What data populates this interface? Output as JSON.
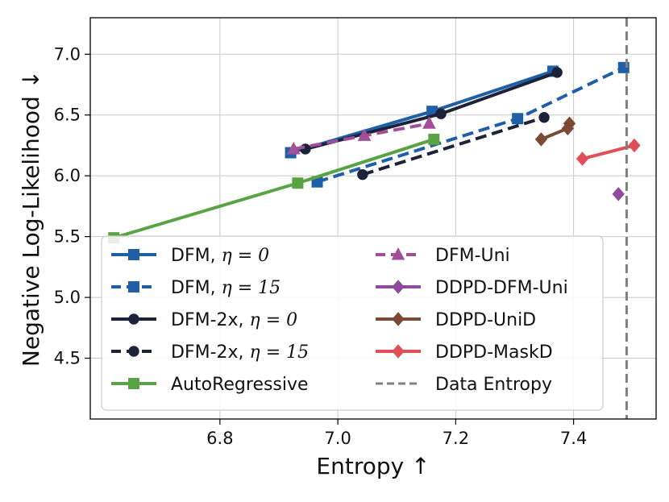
{
  "chart_data": {
    "type": "line",
    "xlabel": "Entropy ↑",
    "ylabel": "Negative Log-Likelihood ↓",
    "xlim": [
      6.58,
      7.54
    ],
    "ylim": [
      4.0,
      7.3
    ],
    "xticks": [
      6.8,
      7.0,
      7.2,
      7.4
    ],
    "xtick_labels": [
      "6.8",
      "7.0",
      "7.2",
      "7.4"
    ],
    "yticks": [
      4.5,
      5.0,
      5.5,
      6.0,
      6.5,
      7.0
    ],
    "ytick_labels": [
      "4.5",
      "5.0",
      "5.5",
      "6.0",
      "6.5",
      "7.0"
    ],
    "grid": true,
    "legend_position": "lower-left",
    "series": [
      {
        "name": "DFM, η = 0",
        "label_base": "DFM, ",
        "math": "η = 0",
        "color": "#1f5fa8",
        "linestyle": "solid",
        "marker": "square",
        "x": [
          6.92,
          7.16,
          7.365
        ],
        "y": [
          6.19,
          6.53,
          6.86
        ]
      },
      {
        "name": "DFM, η = 15",
        "label_base": "DFM, ",
        "math": "η = 15",
        "color": "#1f5fa8",
        "linestyle": "dashed",
        "marker": "square",
        "x": [
          6.965,
          7.305,
          7.485
        ],
        "y": [
          5.95,
          6.47,
          6.89
        ]
      },
      {
        "name": "DFM-2x, η = 0",
        "label_base": "DFM-2x, ",
        "math": "η = 0",
        "color": "#1c2238",
        "linestyle": "solid",
        "marker": "circle",
        "x": [
          6.945,
          7.175,
          7.372
        ],
        "y": [
          6.22,
          6.51,
          6.85
        ]
      },
      {
        "name": "DFM-2x, η = 15",
        "label_base": "DFM-2x, ",
        "math": "η = 15",
        "color": "#1c2238",
        "linestyle": "dashed",
        "marker": "circle",
        "x": [
          7.042,
          7.35
        ],
        "y": [
          6.01,
          6.48
        ]
      },
      {
        "name": "AutoRegressive",
        "label_base": "AutoRegressive",
        "math": "",
        "color": "#5aa344",
        "linestyle": "solid",
        "marker": "square",
        "x": [
          6.62,
          6.932,
          7.163
        ],
        "y": [
          5.49,
          5.94,
          6.3
        ]
      },
      {
        "name": "DFM-Uni",
        "label_base": "DFM-Uni",
        "math": "",
        "color": "#a24f9a",
        "linestyle": "dashed",
        "marker": "triangle",
        "x": [
          6.925,
          7.045,
          7.155
        ],
        "y": [
          6.22,
          6.33,
          6.43
        ]
      },
      {
        "name": "DDPD-DFM-Uni",
        "label_base": "DDPD-DFM-Uni",
        "math": "",
        "color": "#8f4a9e",
        "linestyle": "solid",
        "marker": "diamond",
        "x": [
          7.476
        ],
        "y": [
          5.85
        ]
      },
      {
        "name": "DDPD-UniD",
        "label_base": "DDPD-UniD",
        "math": "",
        "color": "#7b4a35",
        "linestyle": "solid",
        "marker": "diamond",
        "x": [
          7.345,
          7.39,
          7.393
        ],
        "y": [
          6.3,
          6.39,
          6.43
        ]
      },
      {
        "name": "DDPD-MaskD",
        "label_base": "DDPD-MaskD",
        "math": "",
        "color": "#e04f57",
        "linestyle": "solid",
        "marker": "diamond",
        "x": [
          7.415,
          7.503
        ],
        "y": [
          6.14,
          6.25
        ]
      }
    ],
    "reference_lines": [
      {
        "name": "Data Entropy",
        "orientation": "vertical",
        "x": 7.49,
        "color": "#808080",
        "linestyle": "dashed"
      }
    ]
  }
}
